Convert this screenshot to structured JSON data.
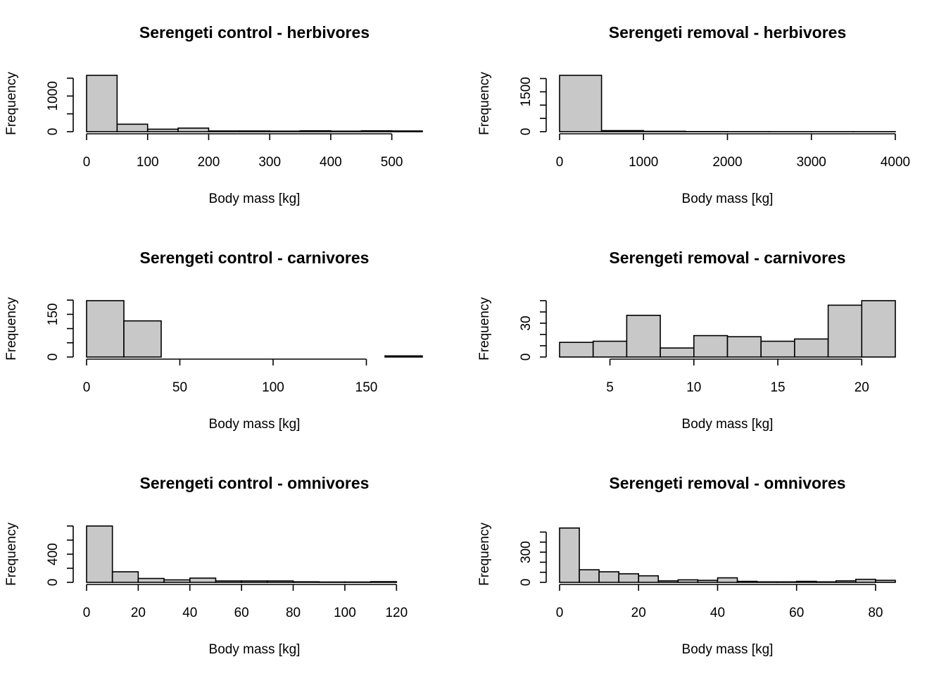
{
  "chart_data": [
    {
      "type": "bar",
      "title": "Serengeti control - herbivores",
      "xlabel": "Body mass [kg]",
      "ylabel": "Frequency",
      "bin_edges": [
        0,
        50,
        100,
        150,
        200,
        250,
        300,
        350,
        400,
        450,
        500,
        550
      ],
      "values": [
        1580,
        210,
        70,
        100,
        20,
        20,
        15,
        25,
        15,
        25,
        20
      ],
      "xlim": [
        0,
        550
      ],
      "ylim": [
        0,
        1580
      ],
      "xticks": [
        0,
        100,
        200,
        300,
        400,
        500
      ],
      "yticks_labeled": [
        0,
        1000
      ],
      "yticks_minor": [
        500,
        1500
      ],
      "grid": false,
      "legend": "none"
    },
    {
      "type": "bar",
      "title": "Serengeti removal - herbivores",
      "xlabel": "Body mass [kg]",
      "ylabel": "Frequency",
      "bin_edges": [
        0,
        500,
        1000,
        1500,
        2000,
        2500,
        3000,
        3500,
        4000
      ],
      "values": [
        2120,
        40,
        15,
        5,
        3,
        2,
        2,
        2
      ],
      "xlim": [
        0,
        4000
      ],
      "ylim": [
        0,
        2120
      ],
      "xticks": [
        0,
        1000,
        2000,
        3000,
        4000
      ],
      "yticks_labeled": [
        0,
        1500
      ],
      "yticks_minor": [
        500,
        1000,
        2000
      ],
      "grid": false,
      "legend": "none"
    },
    {
      "type": "bar",
      "title": "Serengeti control - carnivores",
      "xlabel": "Body mass [kg]",
      "ylabel": "Frequency",
      "bin_edges": [
        0,
        20,
        40,
        60,
        80,
        100,
        120,
        140,
        160,
        180
      ],
      "values": [
        198,
        127,
        0,
        0,
        0,
        0,
        0,
        0,
        4
      ],
      "xlim": [
        0,
        180
      ],
      "ylim": [
        0,
        198
      ],
      "xticks": [
        0,
        50,
        100,
        150
      ],
      "yticks_labeled": [
        0,
        150
      ],
      "yticks_minor": [
        50,
        100,
        200
      ],
      "grid": false,
      "legend": "none"
    },
    {
      "type": "bar",
      "title": "Serengeti removal - carnivores",
      "xlabel": "Body mass [kg]",
      "ylabel": "Frequency",
      "bin_edges": [
        2,
        4,
        6,
        8,
        10,
        12,
        14,
        16,
        18,
        20,
        22
      ],
      "values": [
        13,
        14,
        37,
        8,
        19,
        18,
        14,
        16,
        46,
        50
      ],
      "xlim": [
        2,
        22
      ],
      "ylim": [
        0,
        50
      ],
      "xticks": [
        5,
        10,
        15,
        20
      ],
      "yticks_labeled": [
        0,
        30
      ],
      "yticks_minor": [
        10,
        20,
        40,
        50
      ],
      "grid": false,
      "legend": "none"
    },
    {
      "type": "bar",
      "title": "Serengeti control - omnivores",
      "xlabel": "Body mass [kg]",
      "ylabel": "Frequency",
      "bin_edges": [
        0,
        10,
        20,
        30,
        40,
        50,
        60,
        70,
        80,
        90,
        100,
        110,
        120,
        130
      ],
      "values": [
        800,
        150,
        55,
        35,
        60,
        20,
        20,
        20,
        8,
        5,
        5,
        10,
        0
      ],
      "xlim": [
        0,
        130
      ],
      "ylim": [
        0,
        800
      ],
      "xticks": [
        0,
        20,
        40,
        60,
        80,
        100,
        120
      ],
      "yticks_labeled": [
        0,
        400
      ],
      "yticks_minor": [
        200,
        600,
        800
      ],
      "grid": false,
      "legend": "none"
    },
    {
      "type": "bar",
      "title": "Serengeti removal - omnivores",
      "xlabel": "Body mass [kg]",
      "ylabel": "Frequency",
      "bin_edges": [
        0,
        5,
        10,
        15,
        20,
        25,
        30,
        35,
        40,
        45,
        50,
        55,
        60,
        65,
        70,
        75,
        80,
        85
      ],
      "values": [
        540,
        125,
        105,
        85,
        65,
        15,
        25,
        20,
        45,
        10,
        5,
        5,
        10,
        5,
        15,
        30,
        20
      ],
      "xlim": [
        0,
        85
      ],
      "ylim": [
        0,
        560
      ],
      "xticks": [
        0,
        20,
        40,
        60,
        80
      ],
      "yticks_labeled": [
        0,
        300
      ],
      "yticks_minor": [
        100,
        200,
        400,
        500
      ],
      "grid": false,
      "legend": "none"
    }
  ]
}
